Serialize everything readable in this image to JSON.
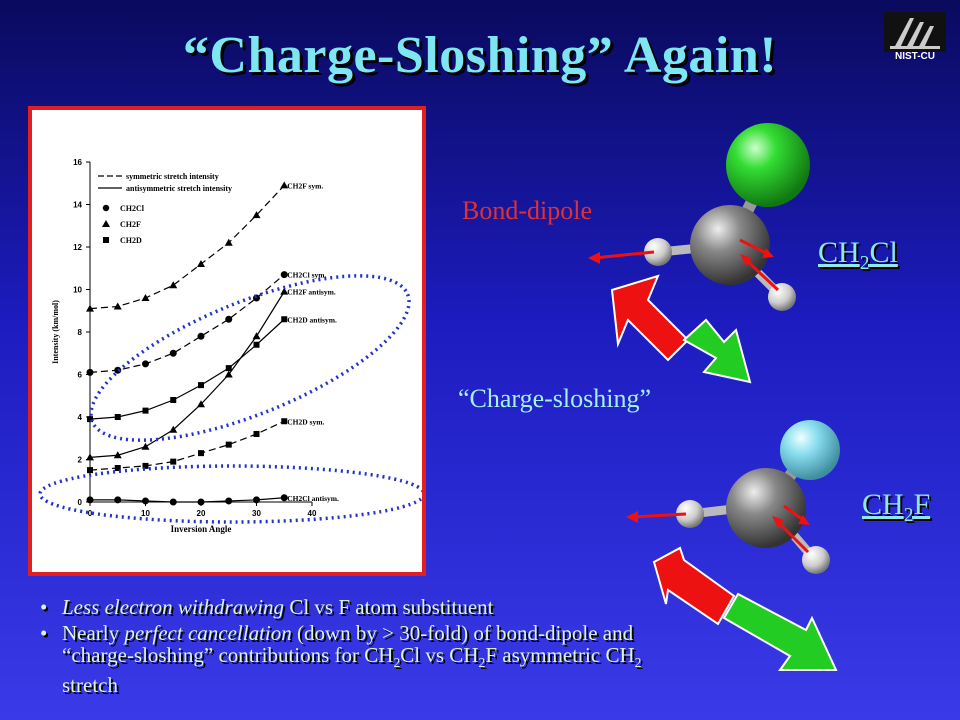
{
  "slide": {
    "title": "“Charge-Sloshing” Again!",
    "logo_text": "NIST-CU"
  },
  "labels": {
    "bond_dipole": "Bond-dipole",
    "charge_sloshing": "“Charge-sloshing”",
    "mol1": "CH2Cl",
    "mol2": "CH2F"
  },
  "colors": {
    "title": "#7ee6f0",
    "arrow_red": "#ee1111",
    "arrow_green": "#22cc22",
    "chlorine": "#33dd33",
    "fluorine": "#88ddee"
  },
  "bullets": [
    {
      "emph": "Less electron withdrawing",
      "rest": " Cl vs F atom substituent"
    },
    {
      "prefix": "Nearly ",
      "emph": "perfect cancellation",
      "rest": " (down by > 30-fold) of bond-dipole and “charge-sloshing” contributions for CH2Cl vs CH2F asymmetric CH2 stretch"
    }
  ],
  "chart_data": {
    "type": "line",
    "title": "",
    "xlabel": "Inversion Angle",
    "ylabel": "Intensity (km/mol)",
    "xlim": [
      0,
      40
    ],
    "ylim": [
      0,
      16
    ],
    "xticks": [
      0,
      10,
      20,
      30,
      40
    ],
    "yticks": [
      0,
      2,
      4,
      6,
      8,
      10,
      12,
      14,
      16
    ],
    "legend": {
      "lines": [
        "symmetric stretch intensity",
        "antisymmetric stretch intensity"
      ],
      "markers": [
        {
          "name": "CH2Cl",
          "marker": "circle"
        },
        {
          "name": "CH2F",
          "marker": "triangle"
        },
        {
          "name": "CH2D",
          "marker": "square"
        }
      ],
      "position": "top-left"
    },
    "x": [
      0,
      5,
      10,
      15,
      20,
      25,
      30,
      35
    ],
    "series": [
      {
        "name": "CH2F sym.",
        "style": "dashed",
        "marker": "triangle",
        "values": [
          9.1,
          9.2,
          9.6,
          10.2,
          11.2,
          12.2,
          13.5,
          14.9
        ]
      },
      {
        "name": "CH2Cl sym.",
        "style": "dashed",
        "marker": "circle",
        "values": [
          6.1,
          6.2,
          6.5,
          7.0,
          7.8,
          8.6,
          9.6,
          10.7
        ]
      },
      {
        "name": "CH2F antisym.",
        "style": "solid",
        "marker": "triangle",
        "values": [
          2.1,
          2.2,
          2.6,
          3.4,
          4.6,
          6.0,
          7.8,
          9.9
        ]
      },
      {
        "name": "CH2D antisym.",
        "style": "solid",
        "marker": "square",
        "values": [
          3.9,
          4.0,
          4.3,
          4.8,
          5.5,
          6.3,
          7.4,
          8.6
        ]
      },
      {
        "name": "CH2D sym.",
        "style": "dashed",
        "marker": "square",
        "values": [
          1.5,
          1.6,
          1.7,
          1.9,
          2.3,
          2.7,
          3.2,
          3.8
        ]
      },
      {
        "name": "CH2Cl antisym.",
        "style": "solid",
        "marker": "circle",
        "values": [
          0.1,
          0.1,
          0.05,
          0.0,
          0.0,
          0.05,
          0.1,
          0.2
        ]
      }
    ]
  }
}
